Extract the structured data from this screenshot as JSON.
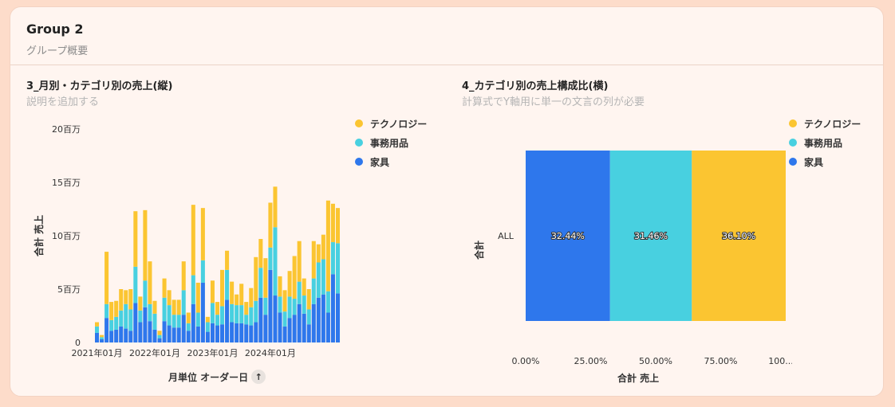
{
  "group": {
    "title": "Group 2",
    "subtitle": "グループ概要"
  },
  "colors": {
    "technology": "#fbc531",
    "office": "#48d0e0",
    "furniture": "#2e77ec"
  },
  "chart_data": [
    {
      "type": "bar",
      "stacked": true,
      "title": "3_月別・カテゴリ別の売上(縦)",
      "description": "説明を追加する",
      "xlabel": "月単位 オーダー日",
      "ylabel": "合計 売上",
      "ylim": [
        0,
        20000000
      ],
      "yticks": [
        {
          "value": 0,
          "label": "0"
        },
        {
          "value": 5000000,
          "label": "5百万"
        },
        {
          "value": 10000000,
          "label": "10百万"
        },
        {
          "value": 15000000,
          "label": "15百万"
        },
        {
          "value": 20000000,
          "label": "20百万"
        }
      ],
      "xticks": [
        {
          "index": 0,
          "label": "2021年01月"
        },
        {
          "index": 12,
          "label": "2022年01月"
        },
        {
          "index": 24,
          "label": "2023年01月"
        },
        {
          "index": 36,
          "label": "2024年01月"
        }
      ],
      "legend_position": "top-right",
      "series": [
        {
          "name": "家具",
          "color": "#2e77ec",
          "values": [
            0.9,
            0.3,
            2.3,
            1.1,
            1.2,
            1.5,
            1.3,
            1.1,
            3.7,
            1.9,
            3.3,
            2.0,
            1.2,
            0.4,
            2.0,
            1.6,
            1.4,
            1.4,
            2.6,
            1.1,
            3.6,
            1.5,
            5.6,
            1.0,
            1.8,
            1.6,
            1.7,
            4.0,
            1.9,
            1.8,
            1.8,
            1.7,
            1.6,
            1.9,
            4.2,
            2.6,
            6.8,
            4.4,
            2.8,
            1.5,
            2.3,
            2.6,
            3.6,
            2.7,
            1.7,
            3.6,
            4.2,
            4.5,
            2.8,
            6.4,
            4.6
          ]
        },
        {
          "name": "事務用品",
          "color": "#48d0e0",
          "values": [
            0.6,
            0.2,
            1.3,
            1.0,
            1.2,
            1.5,
            2.3,
            2.0,
            3.4,
            1.1,
            2.5,
            1.6,
            1.5,
            0.3,
            2.2,
            1.9,
            1.2,
            1.2,
            2.3,
            0.7,
            2.7,
            1.3,
            2.1,
            0.9,
            1.9,
            1.0,
            1.7,
            2.8,
            1.7,
            1.7,
            1.7,
            0.9,
            1.7,
            2.0,
            2.8,
            1.6,
            2.1,
            6.4,
            1.5,
            1.4,
            2.0,
            1.5,
            2.1,
            1.7,
            1.4,
            2.4,
            3.3,
            3.3,
            2.0,
            3.0,
            4.7
          ]
        },
        {
          "name": "テクノロジー",
          "color": "#fbc531",
          "values": [
            0.4,
            0.2,
            4.9,
            1.7,
            1.5,
            2.0,
            1.3,
            1.9,
            5.2,
            1.3,
            6.6,
            4.0,
            1.2,
            0.4,
            1.8,
            1.4,
            1.4,
            1.4,
            2.7,
            1.0,
            6.6,
            2.8,
            4.9,
            0.5,
            2.1,
            1.2,
            3.4,
            1.8,
            2.1,
            1.0,
            2.0,
            1.2,
            1.8,
            4.1,
            2.7,
            3.7,
            4.2,
            3.8,
            1.9,
            2.0,
            2.4,
            4.0,
            3.8,
            1.6,
            1.9,
            3.5,
            1.7,
            2.3,
            8.5,
            3.6,
            3.3
          ]
        }
      ]
    },
    {
      "type": "bar",
      "orientation": "horizontal",
      "stacked_percent": true,
      "title": "4_カテゴリ別の売上構成比(横)",
      "description": "計算式でY軸用に単一の文言の列が必要",
      "xlabel": "合計 売上",
      "ylabel": "合計",
      "category": "ALL",
      "xlim": [
        0,
        1
      ],
      "xticks": [
        {
          "value": 0,
          "label": "0.00%"
        },
        {
          "value": 0.25,
          "label": "25.00%"
        },
        {
          "value": 0.5,
          "label": "50.00%"
        },
        {
          "value": 0.75,
          "label": "75.00%"
        },
        {
          "value": 1.0,
          "label": "100..."
        }
      ],
      "legend_position": "top-right",
      "series": [
        {
          "name": "家具",
          "color": "#2e77ec",
          "value": 32.44,
          "label": "32.44%"
        },
        {
          "name": "事務用品",
          "color": "#48d0e0",
          "value": 31.46,
          "label": "31.46%"
        },
        {
          "name": "テクノロジー",
          "color": "#fbc531",
          "value": 36.1,
          "label": "36.10%"
        }
      ]
    }
  ],
  "legend": [
    {
      "name": "テクノロジー",
      "color": "#fbc531"
    },
    {
      "name": "事務用品",
      "color": "#48d0e0"
    },
    {
      "name": "家具",
      "color": "#2e77ec"
    }
  ],
  "sort_icon": "arrow-up-icon"
}
